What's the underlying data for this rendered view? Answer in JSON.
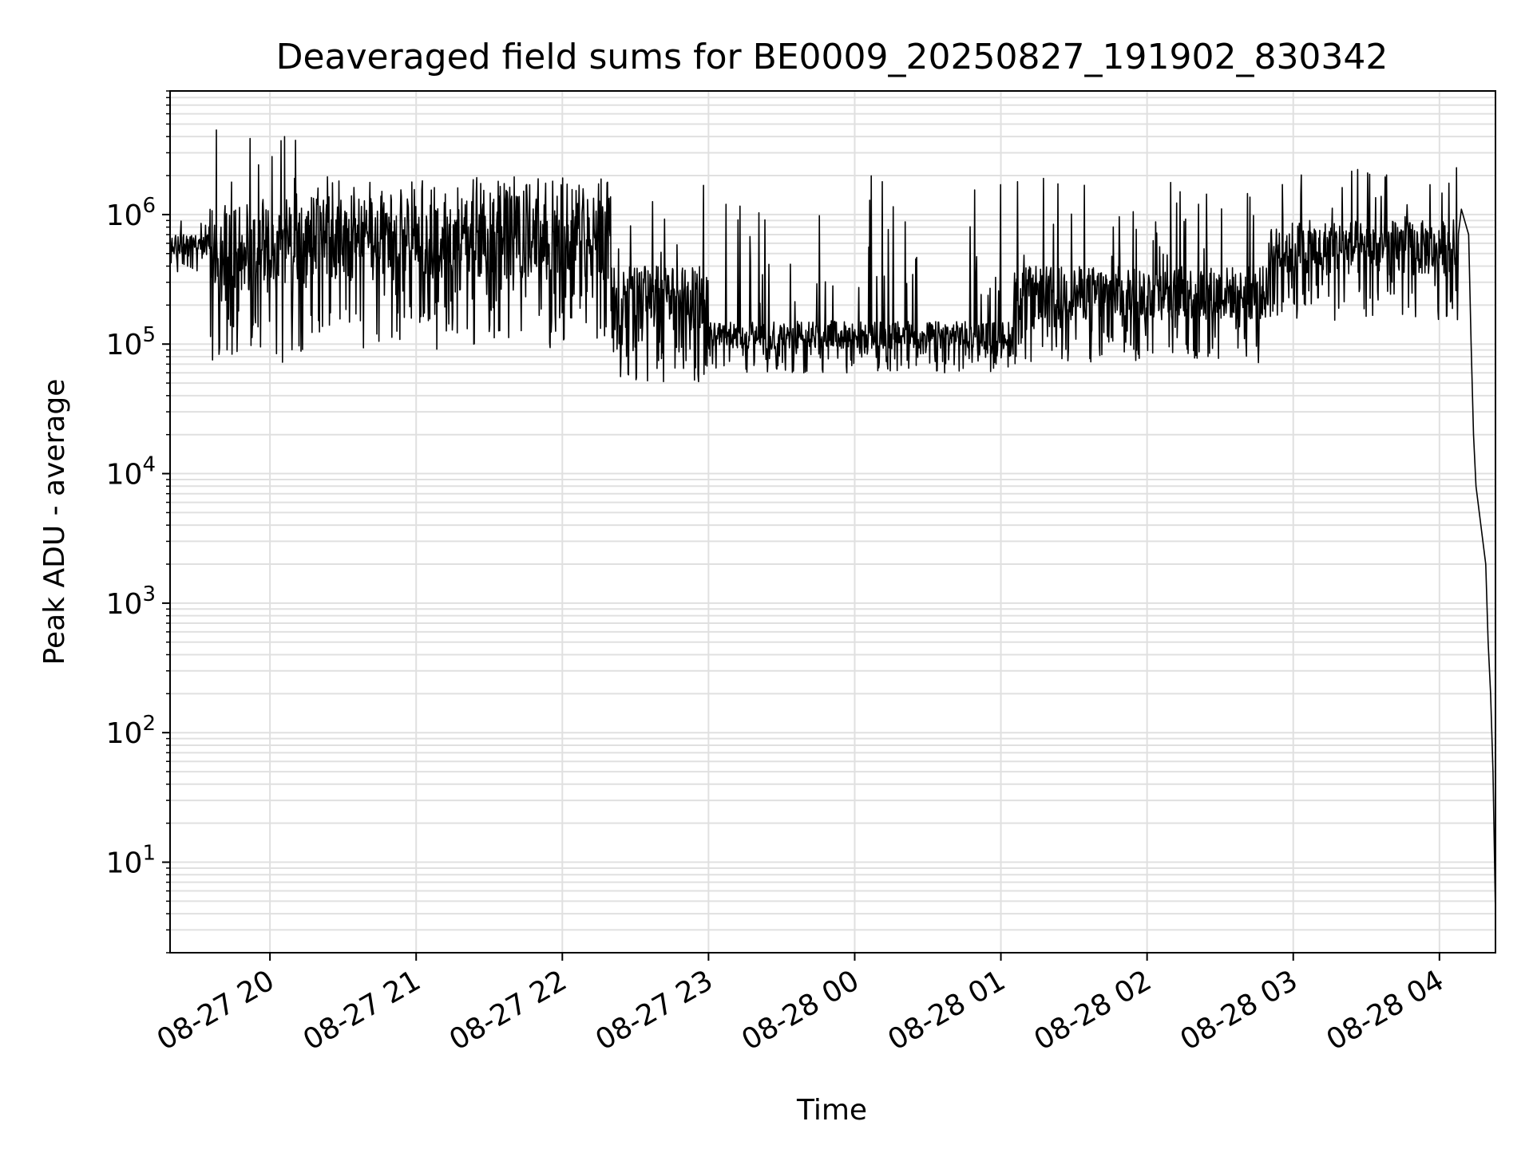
{
  "chart_data": {
    "type": "line",
    "title": "Deaveraged field sums for BE0009_20250827_191902_830342",
    "xlabel": "Time",
    "ylabel": "Peak ADU - average",
    "x_range": [
      "2025-08-27 19:19",
      "2025-08-28 04:23"
    ],
    "y_scale": "log",
    "ylim": [
      2,
      9000000
    ],
    "grid": true,
    "legend": "none",
    "line_color": "#000000",
    "grid_color": "#e0e0e0",
    "x_tick_labels": [
      "08-27 20",
      "08-27 21",
      "08-27 22",
      "08-27 23",
      "08-28 00",
      "08-28 01",
      "08-28 02",
      "08-28 03",
      "08-28 04"
    ],
    "y_tick_labels": [
      {
        "base": "10",
        "exp": "1"
      },
      {
        "base": "10",
        "exp": "2"
      },
      {
        "base": "10",
        "exp": "3"
      },
      {
        "base": "10",
        "exp": "4"
      },
      {
        "base": "10",
        "exp": "5"
      },
      {
        "base": "10",
        "exp": "6"
      }
    ],
    "regimes": [
      {
        "start": "2025-08-27 19:19",
        "end": "2025-08-27 19:35",
        "low": 350000,
        "high": 700000,
        "spikes_to": 900000
      },
      {
        "start": "2025-08-27 19:35",
        "end": "2025-08-27 20:15",
        "low": 70000,
        "high": 1200000,
        "spikes_to": 4500000
      },
      {
        "start": "2025-08-27 20:15",
        "end": "2025-08-27 22:20",
        "low": 90000,
        "high": 1400000,
        "spikes_to": 2000000
      },
      {
        "start": "2025-08-27 22:20",
        "end": "2025-08-27 23:00",
        "low": 50000,
        "high": 400000,
        "spikes_to": 1800000
      },
      {
        "start": "2025-08-27 23:00",
        "end": "2025-08-28 01:05",
        "low": 60000,
        "high": 150000,
        "spikes_to": 2000000
      },
      {
        "start": "2025-08-28 01:05",
        "end": "2025-08-28 02:50",
        "low": 70000,
        "high": 400000,
        "spikes_to": 2000000
      },
      {
        "start": "2025-08-28 02:50",
        "end": "2025-08-28 04:08",
        "low": 150000,
        "high": 900000,
        "spikes_to": 2300000
      }
    ],
    "series": [
      {
        "x": [
          "2025-08-27 19:19",
          "2025-08-27 19:30",
          "2025-08-27 19:38",
          "2025-08-27 19:41",
          "2025-08-27 20:06",
          "2025-08-27 22:00",
          "2025-08-27 22:40",
          "2025-08-27 23:30",
          "2025-08-28 00:30",
          "2025-08-28 01:00",
          "2025-08-28 02:00",
          "2025-08-28 03:00",
          "2025-08-28 03:50",
          "2025-08-28 04:07",
          "2025-08-28 04:09",
          "2025-08-28 04:12",
          "2025-08-28 04:13",
          "2025-08-28 04:14",
          "2025-08-28 04:15",
          "2025-08-28 04:17",
          "2025-08-28 04:19",
          "2025-08-28 04:20",
          "2025-08-28 04:21",
          "2025-08-28 04:22",
          "2025-08-28 04:23"
        ],
        "y": [
          450000,
          700000,
          4500000,
          500000,
          4000000,
          900000,
          120000,
          110000,
          80000,
          90000,
          300000,
          500000,
          500000,
          2300000,
          1100000,
          700000,
          100000,
          20000,
          8000,
          4000,
          2000,
          500,
          200,
          50,
          4
        ]
      }
    ]
  }
}
